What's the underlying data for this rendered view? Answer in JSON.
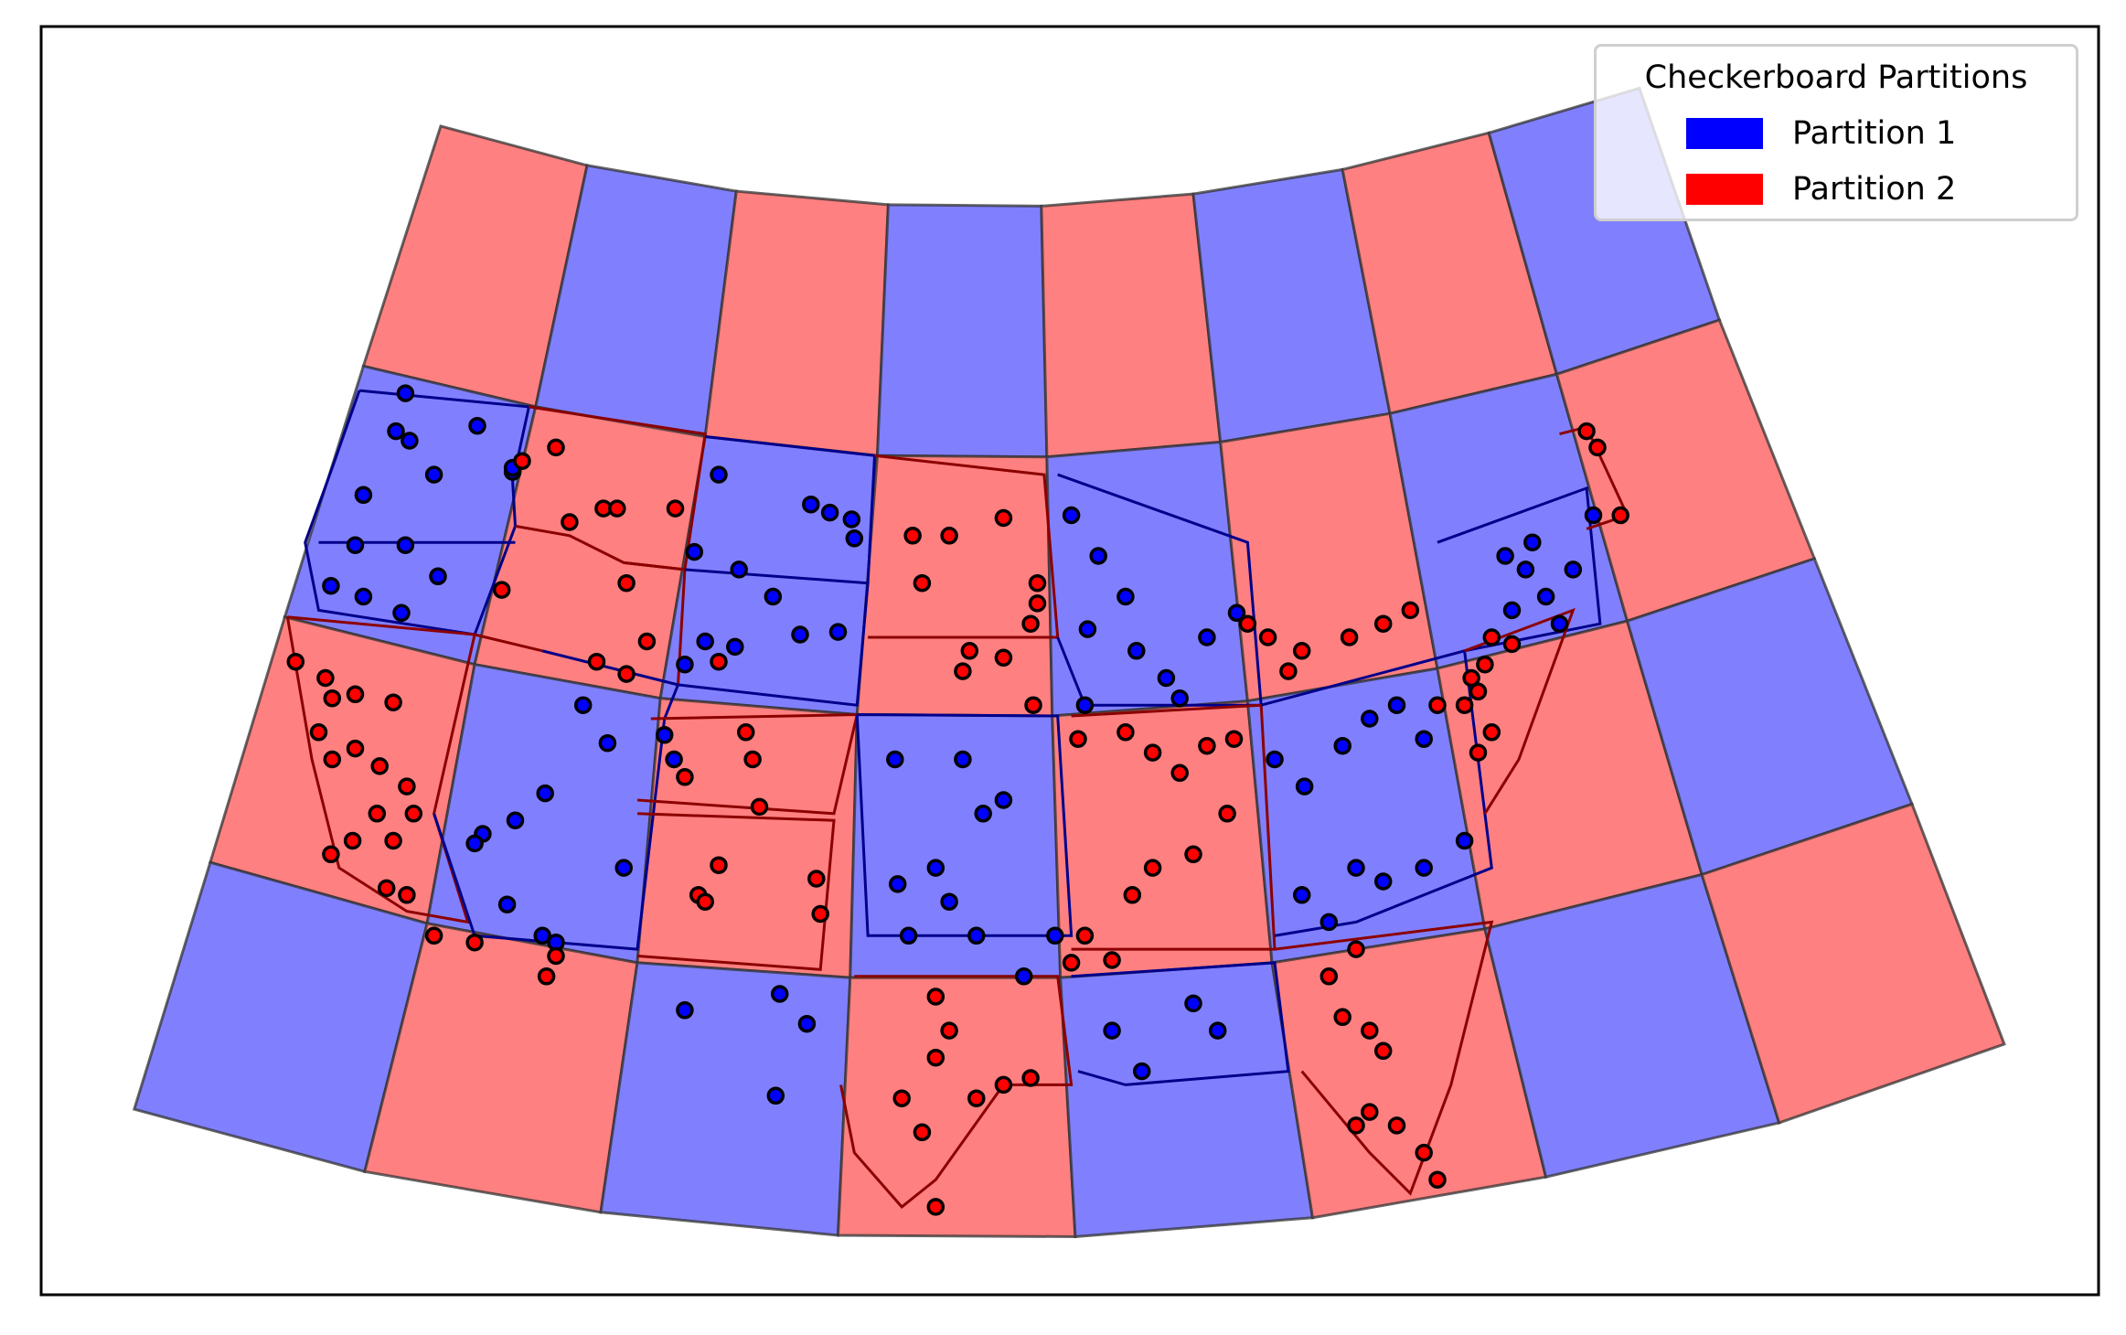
{
  "chart_data": {
    "type": "map",
    "title": "",
    "projection": "Lambert Conformal Conic (contiguous United States)",
    "grid": {
      "rows": 4,
      "cols": 8,
      "pattern": "checkerboard",
      "top_left_partition": "Partition 2"
    },
    "legend": {
      "title": "Checkerboard Partitions",
      "position": "upper right",
      "entries": [
        {
          "label": "Partition 1",
          "color": "#0000ff"
        },
        {
          "label": "Partition 2",
          "color": "#ff0000"
        }
      ]
    },
    "cell_fill_alpha": 0.5,
    "points": {
      "description": "City locations colored by the partition of the grid cell containing them",
      "partition_1_color": "#0000ff",
      "partition_2_color": "#ff0000",
      "edge_color": "#000000"
    }
  },
  "legend": {
    "title": "Checkerboard Partitions",
    "items": [
      {
        "label": "Partition 1",
        "color": "#0000ff"
      },
      {
        "label": "Partition 2",
        "color": "#ff0000"
      }
    ]
  }
}
